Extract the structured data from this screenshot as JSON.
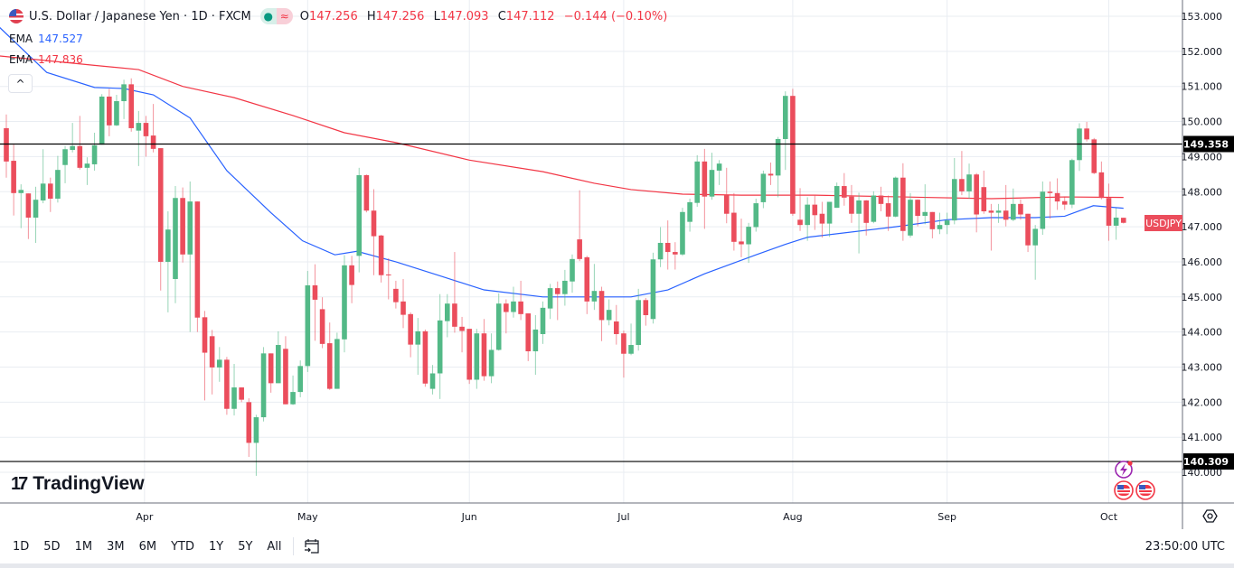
{
  "header": {
    "symbol": "U.S. Dollar / Japanese Yen · 1D · FXCM",
    "status_dot": "●",
    "status_wave": "≈",
    "ohlc": {
      "o_label": "O",
      "o": "147.256",
      "h_label": "H",
      "h": "147.256",
      "l_label": "L",
      "l": "147.093",
      "c_label": "C",
      "c": "147.112",
      "change": "−0.144 (−0.10%)"
    }
  },
  "indicators": [
    {
      "name": "EMA",
      "value": "147.527",
      "color": "#2962ff"
    },
    {
      "name": "EMA",
      "value": "147.836",
      "color": "#f23645"
    }
  ],
  "collapse_label": "^",
  "logo": {
    "mark": "17",
    "text": "TradingView"
  },
  "toolbar": {
    "ranges": [
      "1D",
      "5D",
      "1M",
      "3M",
      "6M",
      "YTD",
      "1Y",
      "5Y",
      "All"
    ],
    "time": "23:50:00 UTC"
  },
  "colors": {
    "up": "#53b987",
    "down": "#eb4d5c",
    "ema_fast": "#2962ff",
    "ema_slow": "#f23645"
  },
  "chart_data": {
    "type": "candlestick",
    "title": "U.S. Dollar / Japanese Yen · 1D · FXCM",
    "ylim": [
      139.3,
      153.3
    ],
    "yticks": [
      "140.000",
      "141.000",
      "142.000",
      "143.000",
      "144.000",
      "145.000",
      "146.000",
      "147.000",
      "148.000",
      "149.000",
      "150.000",
      "151.000",
      "152.000",
      "153.000"
    ],
    "month_ticks": [
      {
        "label": "Apr",
        "index": 19.8
      },
      {
        "label": "May",
        "index": 42
      },
      {
        "label": "Jun",
        "index": 64
      },
      {
        "label": "Jul",
        "index": 85
      },
      {
        "label": "Aug",
        "index": 108
      },
      {
        "label": "Sep",
        "index": 129
      },
      {
        "label": "Oct",
        "index": 151
      }
    ],
    "hlines": [
      {
        "value": 149.358,
        "label": "149.358"
      },
      {
        "value": 140.309,
        "label": "140.309"
      }
    ],
    "last_price_label": "USDJPY",
    "last_price": 147.112,
    "ohlc": [
      [
        149.81,
        150.2,
        148.4,
        148.86
      ],
      [
        148.88,
        149.34,
        147.32,
        147.96
      ],
      [
        147.96,
        148.21,
        146.96,
        148.05
      ],
      [
        147.95,
        147.95,
        146.65,
        147.26
      ],
      [
        147.26,
        148.14,
        146.54,
        147.77
      ],
      [
        147.75,
        149.21,
        147.67,
        148.23
      ],
      [
        148.23,
        148.4,
        147.42,
        147.8
      ],
      [
        147.8,
        149.02,
        147.69,
        148.62
      ],
      [
        148.76,
        149.3,
        148.24,
        149.21
      ],
      [
        149.19,
        149.96,
        149.12,
        149.3
      ],
      [
        149.3,
        150.16,
        148.63,
        148.68
      ],
      [
        148.68,
        148.98,
        148.19,
        148.8
      ],
      [
        148.78,
        149.68,
        148.6,
        149.32
      ],
      [
        149.34,
        150.78,
        149.34,
        150.71
      ],
      [
        150.71,
        150.93,
        149.58,
        149.89
      ],
      [
        149.89,
        150.76,
        149.87,
        150.58
      ],
      [
        150.58,
        151.19,
        150.07,
        151.06
      ],
      [
        151.06,
        151.23,
        149.71,
        149.81
      ],
      [
        149.74,
        150.3,
        148.73,
        149.96
      ],
      [
        149.96,
        150.16,
        149.0,
        149.58
      ],
      [
        149.6,
        150.5,
        149.12,
        149.22
      ],
      [
        149.24,
        149.24,
        145.18,
        146.0
      ],
      [
        146.0,
        147.44,
        144.56,
        146.92
      ],
      [
        145.51,
        148.16,
        144.82,
        147.82
      ],
      [
        147.82,
        148.12,
        145.98,
        146.21
      ],
      [
        146.21,
        148.29,
        144.0,
        147.72
      ],
      [
        147.72,
        147.72,
        144.0,
        144.41
      ],
      [
        144.42,
        144.6,
        142.05,
        143.41
      ],
      [
        143.88,
        144.06,
        142.22,
        142.99
      ],
      [
        142.99,
        143.57,
        142.58,
        143.21
      ],
      [
        143.21,
        143.29,
        141.64,
        141.81
      ],
      [
        141.81,
        143.09,
        141.62,
        142.42
      ],
      [
        142.42,
        142.42,
        142.0,
        142.07
      ],
      [
        142.0,
        142.11,
        140.44,
        140.84
      ],
      [
        140.84,
        141.64,
        139.9,
        141.57
      ],
      [
        141.57,
        143.57,
        141.45,
        143.39
      ],
      [
        143.39,
        143.39,
        142.27,
        142.54
      ],
      [
        142.54,
        144.02,
        142.54,
        143.63
      ],
      [
        143.52,
        143.88,
        141.94,
        141.94
      ],
      [
        141.94,
        142.76,
        141.92,
        142.29
      ],
      [
        142.29,
        143.19,
        142.14,
        143.03
      ],
      [
        143.03,
        145.74,
        142.86,
        145.33
      ],
      [
        145.33,
        145.93,
        143.75,
        144.92
      ],
      [
        144.65,
        144.99,
        143.54,
        143.66
      ],
      [
        143.68,
        144.27,
        142.35,
        142.38
      ],
      [
        142.38,
        143.98,
        142.38,
        143.8
      ],
      [
        143.79,
        146.19,
        143.42,
        145.9
      ],
      [
        145.9,
        146.17,
        144.82,
        145.34
      ],
      [
        146.17,
        148.68,
        145.7,
        148.47
      ],
      [
        148.47,
        148.49,
        147.41,
        147.46
      ],
      [
        147.46,
        148.07,
        145.62,
        146.73
      ],
      [
        146.75,
        146.77,
        145.41,
        145.62
      ],
      [
        145.64,
        146.1,
        144.93,
        145.63
      ],
      [
        145.23,
        145.46,
        144.67,
        144.85
      ],
      [
        144.87,
        145.51,
        144.11,
        144.49
      ],
      [
        144.51,
        144.56,
        143.28,
        143.64
      ],
      [
        143.64,
        144.4,
        142.78,
        144.02
      ],
      [
        144.02,
        144.07,
        142.44,
        142.53
      ],
      [
        142.38,
        143.06,
        142.22,
        142.82
      ],
      [
        142.82,
        145.08,
        142.09,
        144.33
      ],
      [
        144.31,
        145.08,
        143.85,
        144.81
      ],
      [
        144.81,
        146.28,
        143.98,
        144.15
      ],
      [
        144.15,
        144.43,
        143.42,
        144.03
      ],
      [
        144.09,
        144.09,
        142.52,
        142.64
      ],
      [
        142.64,
        144.09,
        142.38,
        143.96
      ],
      [
        143.96,
        144.37,
        142.61,
        142.74
      ],
      [
        142.74,
        143.96,
        142.54,
        143.49
      ],
      [
        143.49,
        145.1,
        143.47,
        144.81
      ],
      [
        144.81,
        144.93,
        143.96,
        144.57
      ],
      [
        144.57,
        145.29,
        144.41,
        144.87
      ],
      [
        144.87,
        145.46,
        144.34,
        144.51
      ],
      [
        144.53,
        144.53,
        143.17,
        143.45
      ],
      [
        143.45,
        144.48,
        142.78,
        144.07
      ],
      [
        143.94,
        144.87,
        143.66,
        144.69
      ],
      [
        144.67,
        145.37,
        144.37,
        145.25
      ],
      [
        145.25,
        145.44,
        144.34,
        145.08
      ],
      [
        145.08,
        145.77,
        144.75,
        145.46
      ],
      [
        145.44,
        146.21,
        145.12,
        146.08
      ],
      [
        146.64,
        148.04,
        146.02,
        146.08
      ],
      [
        146.13,
        146.17,
        144.51,
        144.87
      ],
      [
        144.87,
        145.94,
        144.63,
        145.17
      ],
      [
        145.17,
        145.29,
        143.74,
        144.34
      ],
      [
        144.34,
        144.93,
        144.19,
        144.63
      ],
      [
        144.3,
        144.77,
        143.64,
        143.94
      ],
      [
        143.96,
        144.04,
        142.7,
        143.38
      ],
      [
        143.38,
        144.24,
        143.34,
        143.63
      ],
      [
        143.63,
        145.23,
        143.47,
        144.91
      ],
      [
        144.91,
        144.97,
        144.18,
        144.48
      ],
      [
        144.37,
        146.26,
        144.24,
        146.07
      ],
      [
        146.07,
        146.99,
        145.85,
        146.54
      ],
      [
        146.54,
        147.18,
        145.78,
        146.28
      ],
      [
        146.28,
        146.56,
        145.78,
        146.21
      ],
      [
        146.21,
        147.54,
        146.17,
        147.42
      ],
      [
        147.14,
        147.8,
        146.86,
        147.7
      ],
      [
        147.68,
        149.04,
        147.57,
        148.86
      ],
      [
        148.86,
        149.22,
        146.94,
        147.86
      ],
      [
        147.86,
        149.11,
        147.77,
        148.62
      ],
      [
        148.6,
        148.9,
        148.19,
        148.8
      ],
      [
        147.9,
        148.68,
        147.1,
        147.37
      ],
      [
        147.4,
        147.96,
        146.32,
        146.57
      ],
      [
        146.58,
        147.23,
        146.13,
        146.5
      ],
      [
        146.5,
        147.11,
        145.97,
        147.0
      ],
      [
        146.99,
        147.8,
        146.86,
        147.67
      ],
      [
        147.7,
        148.6,
        147.53,
        148.51
      ],
      [
        148.51,
        148.83,
        148.19,
        148.46
      ],
      [
        148.46,
        149.56,
        147.84,
        149.5
      ],
      [
        149.5,
        150.86,
        148.62,
        150.73
      ],
      [
        150.73,
        150.93,
        147.31,
        147.37
      ],
      [
        147.2,
        148.1,
        146.88,
        147.05
      ],
      [
        147.05,
        147.84,
        146.6,
        147.63
      ],
      [
        147.63,
        147.91,
        146.91,
        147.33
      ],
      [
        147.37,
        147.71,
        146.69,
        147.09
      ],
      [
        147.09,
        147.71,
        146.71,
        147.71
      ],
      [
        147.54,
        148.26,
        147.54,
        148.16
      ],
      [
        148.16,
        148.53,
        147.6,
        147.83
      ],
      [
        147.86,
        148.19,
        147.11,
        147.37
      ],
      [
        147.37,
        147.97,
        146.24,
        147.75
      ],
      [
        147.75,
        147.76,
        146.75,
        147.11
      ],
      [
        147.14,
        148.01,
        147.1,
        147.89
      ],
      [
        147.89,
        148.14,
        147.44,
        147.65
      ],
      [
        147.67,
        147.89,
        146.88,
        147.29
      ],
      [
        147.29,
        148.43,
        147.27,
        148.4
      ],
      [
        148.4,
        148.81,
        146.6,
        146.88
      ],
      [
        146.75,
        147.96,
        146.69,
        147.77
      ],
      [
        147.77,
        147.78,
        147.01,
        147.31
      ],
      [
        147.31,
        148.21,
        147.07,
        147.42
      ],
      [
        147.42,
        147.42,
        146.67,
        146.93
      ],
      [
        146.93,
        147.4,
        146.79,
        147.05
      ],
      [
        147.05,
        147.4,
        146.79,
        147.18
      ],
      [
        147.18,
        148.96,
        147.07,
        148.36
      ],
      [
        148.36,
        149.16,
        147.9,
        148.01
      ],
      [
        148.01,
        148.8,
        147.8,
        148.49
      ],
      [
        148.49,
        148.53,
        146.84,
        147.35
      ],
      [
        148.13,
        148.6,
        147.37,
        147.44
      ],
      [
        147.46,
        147.65,
        146.32,
        147.4
      ],
      [
        147.4,
        147.65,
        147.11,
        147.46
      ],
      [
        147.46,
        148.19,
        147.01,
        147.2
      ],
      [
        147.2,
        148.09,
        147.16,
        147.65
      ],
      [
        147.65,
        147.78,
        147.2,
        147.35
      ],
      [
        147.37,
        147.37,
        146.28,
        146.47
      ],
      [
        146.47,
        147.05,
        145.49,
        146.94
      ],
      [
        146.94,
        148.29,
        146.77,
        148.0
      ],
      [
        148.0,
        148.29,
        147.23,
        147.96
      ],
      [
        147.96,
        148.38,
        147.48,
        147.72
      ],
      [
        147.73,
        147.84,
        147.48,
        147.63
      ],
      [
        147.63,
        148.94,
        147.53,
        148.9
      ],
      [
        148.9,
        149.95,
        148.59,
        149.8
      ],
      [
        149.8,
        149.99,
        149.43,
        149.49
      ],
      [
        149.49,
        149.53,
        148.5,
        148.53
      ],
      [
        148.55,
        148.86,
        147.78,
        147.82
      ],
      [
        147.82,
        148.23,
        146.6,
        147.03
      ],
      [
        147.03,
        147.53,
        146.63,
        147.26
      ],
      [
        147.256,
        147.256,
        147.093,
        147.112
      ]
    ],
    "ema_fast": [
      [
        0,
        152.7
      ],
      [
        6.5,
        151.4
      ],
      [
        13,
        150.97
      ],
      [
        17,
        150.94
      ],
      [
        21,
        150.76
      ],
      [
        26,
        150.1
      ],
      [
        31,
        148.6
      ],
      [
        37,
        147.4
      ],
      [
        41.3,
        146.6
      ],
      [
        45.7,
        146.2
      ],
      [
        48.7,
        146.3
      ],
      [
        54,
        146.0
      ],
      [
        60,
        145.6
      ],
      [
        66,
        145.2
      ],
      [
        74,
        145.0
      ],
      [
        81,
        145.0
      ],
      [
        86,
        145.0
      ],
      [
        91,
        145.2
      ],
      [
        96,
        145.66
      ],
      [
        103,
        146.2
      ],
      [
        107,
        146.5
      ],
      [
        110,
        146.7
      ],
      [
        122,
        147.0
      ],
      [
        129,
        147.2
      ],
      [
        135,
        147.26
      ],
      [
        141,
        147.26
      ],
      [
        145,
        147.3
      ],
      [
        148.9,
        147.6
      ],
      [
        153,
        147.527
      ]
    ],
    "ema_slow": [
      [
        0,
        151.87
      ],
      [
        13,
        151.6
      ],
      [
        19,
        151.48
      ],
      [
        25,
        151.0
      ],
      [
        32,
        150.68
      ],
      [
        40,
        150.17
      ],
      [
        47,
        149.68
      ],
      [
        54,
        149.4
      ],
      [
        64,
        148.9
      ],
      [
        74,
        148.57
      ],
      [
        81,
        148.24
      ],
      [
        86,
        148.06
      ],
      [
        93,
        147.93
      ],
      [
        101,
        147.9
      ],
      [
        111,
        147.9
      ],
      [
        123,
        147.85
      ],
      [
        135,
        147.8
      ],
      [
        145,
        147.85
      ],
      [
        153,
        147.836
      ]
    ]
  }
}
